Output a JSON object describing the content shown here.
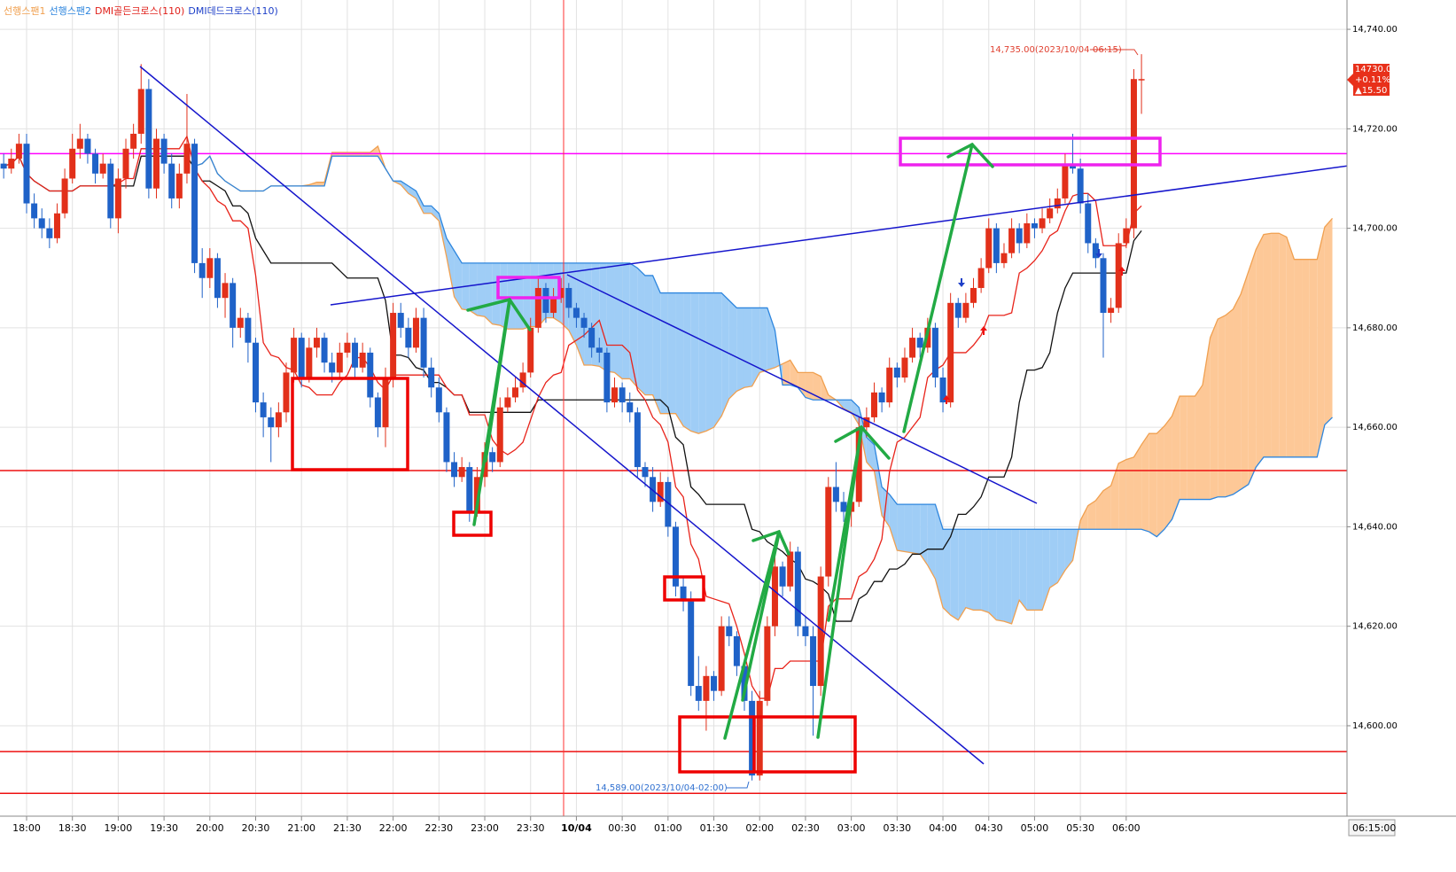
{
  "chart_data": {
    "type": "candlestick",
    "legend": [
      {
        "name": "선행스팬1",
        "color": "#f0a050"
      },
      {
        "name": "선행스팬2",
        "color": "#2e86de"
      },
      {
        "name": "DMI골든크로스(110)",
        "color": "#e0201a"
      },
      {
        "name": "DMI데드크로스(110)",
        "color": "#1d3fc8"
      }
    ],
    "up_color": "#e2301a",
    "down_color": "#1f62c8",
    "tenkan_color": "#e8231a",
    "kijun_color": "#111111",
    "ylim": [
      14582,
      14745
    ],
    "yticks": [
      {
        "value": 14600,
        "label": "14,600.00"
      },
      {
        "value": 14620,
        "label": "14,620.00"
      },
      {
        "value": 14640,
        "label": "14,640.00"
      },
      {
        "value": 14660,
        "label": "14,660.00"
      },
      {
        "value": 14680,
        "label": "14,680.00"
      },
      {
        "value": 14700,
        "label": "14,700.00"
      },
      {
        "value": 14720,
        "label": "14,720.00"
      },
      {
        "value": 14740,
        "label": "14,740.00"
      }
    ],
    "grid": true,
    "hlines": [
      {
        "value": 14715,
        "color": "#ff00ff"
      },
      {
        "value": 14651.3,
        "color": "#ee1111"
      },
      {
        "value": 14594.8,
        "color": "#ee1111"
      },
      {
        "value": 14586.4,
        "color": "#ee1111"
      }
    ],
    "high_label": "14,735.00(2023/10/04-06:15)",
    "low_label": "14,589.00(2023/10/04-02:00)",
    "last_price": "14730.00",
    "change_pct": "+0.11%",
    "change": "▲15.50",
    "end_time": "06:15:00",
    "categories": [
      null,
      null,
      null,
      "18:00",
      null,
      null,
      null,
      null,
      null,
      "18:30",
      null,
      null,
      null,
      null,
      null,
      "19:00",
      null,
      null,
      null,
      null,
      null,
      "19:30",
      null,
      null,
      null,
      null,
      null,
      "20:00",
      null,
      null,
      null,
      null,
      null,
      "20:30",
      null,
      null,
      null,
      null,
      null,
      "21:00",
      null,
      null,
      null,
      null,
      null,
      "21:30",
      null,
      null,
      null,
      null,
      null,
      "22:00",
      null,
      null,
      null,
      null,
      null,
      "22:30",
      null,
      null,
      null,
      null,
      null,
      "23:00",
      null,
      null,
      null,
      null,
      null,
      "23:30",
      null,
      null,
      null,
      null,
      null,
      "10/04",
      null,
      null,
      null,
      null,
      null,
      "00:30",
      null,
      null,
      null,
      null,
      null,
      "01:00",
      null,
      null,
      null,
      null,
      null,
      "01:30",
      null,
      null,
      null,
      null,
      null,
      "02:00",
      null,
      null,
      null,
      null,
      null,
      "02:30",
      null,
      null,
      null,
      null,
      null,
      "03:00",
      null,
      null,
      null,
      null,
      null,
      "03:30",
      null,
      null,
      null,
      null,
      null,
      "04:00",
      null,
      null,
      null,
      null,
      null,
      "04:30",
      null,
      null,
      null,
      null,
      null,
      "05:00",
      null,
      null,
      null,
      null,
      null,
      "05:30",
      null,
      null,
      null,
      null,
      null,
      "06:00",
      null,
      null
    ],
    "candles": [
      [
        14713,
        14715,
        14710,
        14712
      ],
      [
        14712,
        14716,
        14711,
        14714
      ],
      [
        14714,
        14719,
        14713,
        14717
      ],
      [
        14717,
        14719,
        14703,
        14705
      ],
      [
        14705,
        14707,
        14700,
        14702
      ],
      [
        14702,
        14704,
        14698,
        14700
      ],
      [
        14700,
        14702,
        14696,
        14698
      ],
      [
        14698,
        14705,
        14697,
        14703
      ],
      [
        14703,
        14712,
        14702,
        14710
      ],
      [
        14710,
        14719,
        14709,
        14716
      ],
      [
        14716,
        14721,
        14714,
        14718
      ],
      [
        14718,
        14719,
        14713,
        14715
      ],
      [
        14715,
        14716,
        14709,
        14711
      ],
      [
        14711,
        14715,
        14710,
        14713
      ],
      [
        14713,
        14714,
        14700,
        14702
      ],
      [
        14702,
        14712,
        14699,
        14710
      ],
      [
        14710,
        14718,
        14708,
        14716
      ],
      [
        14716,
        14721,
        14714,
        14719
      ],
      [
        14719,
        14733,
        14717,
        14728
      ],
      [
        14728,
        14730,
        14706,
        14708
      ],
      [
        14708,
        14720,
        14706,
        14718
      ],
      [
        14718,
        14719,
        14711,
        14713
      ],
      [
        14713,
        14715,
        14704,
        14706
      ],
      [
        14706,
        14713,
        14704,
        14711
      ],
      [
        14711,
        14727,
        14709,
        14717
      ],
      [
        14717,
        14718,
        14691,
        14693
      ],
      [
        14693,
        14696,
        14686,
        14690
      ],
      [
        14690,
        14696,
        14688,
        14694
      ],
      [
        14694,
        14695,
        14684,
        14686
      ],
      [
        14686,
        14691,
        14682,
        14689
      ],
      [
        14689,
        14690,
        14676,
        14680
      ],
      [
        14680,
        14684,
        14678,
        14682
      ],
      [
        14682,
        14683,
        14673,
        14677
      ],
      [
        14677,
        14678,
        14663,
        14665
      ],
      [
        14665,
        14667,
        14658,
        14662
      ],
      [
        14662,
        14664,
        14653,
        14660
      ],
      [
        14660,
        14665,
        14658,
        14663
      ],
      [
        14663,
        14673,
        14661,
        14671
      ],
      [
        14671,
        14680,
        14669,
        14678
      ],
      [
        14678,
        14679,
        14668,
        14670
      ],
      [
        14670,
        14678,
        14669,
        14676
      ],
      [
        14676,
        14680,
        14674,
        14678
      ],
      [
        14678,
        14679,
        14671,
        14673
      ],
      [
        14673,
        14675,
        14669,
        14671
      ],
      [
        14671,
        14677,
        14670,
        14675
      ],
      [
        14675,
        14679,
        14674,
        14677
      ],
      [
        14677,
        14678,
        14670,
        14672
      ],
      [
        14672,
        14677,
        14671,
        14675
      ],
      [
        14675,
        14676,
        14664,
        14666
      ],
      [
        14666,
        14667,
        14658,
        14660
      ],
      [
        14660,
        14672,
        14656,
        14670
      ],
      [
        14670,
        14685,
        14668,
        14683
      ],
      [
        14683,
        14685,
        14678,
        14680
      ],
      [
        14680,
        14682,
        14674,
        14676
      ],
      [
        14676,
        14684,
        14675,
        14682
      ],
      [
        14682,
        14684,
        14670,
        14672
      ],
      [
        14672,
        14674,
        14666,
        14668
      ],
      [
        14668,
        14670,
        14661,
        14663
      ],
      [
        14663,
        14664,
        14651,
        14653
      ],
      [
        14653,
        14655,
        14648,
        14650
      ],
      [
        14650,
        14654,
        14649,
        14652
      ],
      [
        14652,
        14653,
        14641,
        14643
      ],
      [
        14643,
        14652,
        14642,
        14650
      ],
      [
        14650,
        14657,
        14648,
        14655
      ],
      [
        14655,
        14656,
        14651,
        14653
      ],
      [
        14653,
        14666,
        14652,
        14664
      ],
      [
        14664,
        14668,
        14663,
        14666
      ],
      [
        14666,
        14670,
        14665,
        14668
      ],
      [
        14668,
        14673,
        14667,
        14671
      ],
      [
        14671,
        14682,
        14670,
        14680
      ],
      [
        14680,
        14690,
        14679,
        14688
      ],
      [
        14688,
        14689,
        14681,
        14683
      ],
      [
        14683,
        14688,
        14682,
        14686
      ],
      [
        14686,
        14690,
        14685,
        14688
      ],
      [
        14688,
        14689,
        14682,
        14684
      ],
      [
        14684,
        14685,
        14680,
        14682
      ],
      [
        14682,
        14683,
        14678,
        14680
      ],
      [
        14680,
        14681,
        14674,
        14676
      ],
      [
        14676,
        14678,
        14673,
        14675
      ],
      [
        14675,
        14676,
        14663,
        14665
      ],
      [
        14665,
        14670,
        14664,
        14668
      ],
      [
        14668,
        14669,
        14663,
        14665
      ],
      [
        14665,
        14667,
        14661,
        14663
      ],
      [
        14663,
        14664,
        14650,
        14652
      ],
      [
        14652,
        14653,
        14648,
        14650
      ],
      [
        14650,
        14652,
        14643,
        14645
      ],
      [
        14645,
        14651,
        14644,
        14649
      ],
      [
        14649,
        14650,
        14638,
        14640
      ],
      [
        14640,
        14641,
        14626,
        14628
      ],
      [
        14628,
        14630,
        14623,
        14625
      ],
      [
        14625,
        14627,
        14606,
        14608
      ],
      [
        14608,
        14614,
        14603,
        14605
      ],
      [
        14605,
        14612,
        14599,
        14610
      ],
      [
        14610,
        14611,
        14605,
        14607
      ],
      [
        14607,
        14622,
        14606,
        14620
      ],
      [
        14620,
        14622,
        14616,
        14618
      ],
      [
        14618,
        14619,
        14610,
        14612
      ],
      [
        14612,
        14613,
        14603,
        14605
      ],
      [
        14605,
        14607,
        14589,
        14590
      ],
      [
        14590,
        14607,
        14589,
        14605
      ],
      [
        14605,
        14622,
        14604,
        14620
      ],
      [
        14620,
        14634,
        14618,
        14632
      ],
      [
        14632,
        14633,
        14626,
        14628
      ],
      [
        14628,
        14637,
        14627,
        14635
      ],
      [
        14635,
        14636,
        14618,
        14620
      ],
      [
        14620,
        14622,
        14616,
        14618
      ],
      [
        14618,
        14620,
        14598,
        14608
      ],
      [
        14608,
        14632,
        14606,
        14630
      ],
      [
        14630,
        14650,
        14628,
        14648
      ],
      [
        14648,
        14653,
        14643,
        14645
      ],
      [
        14645,
        14647,
        14641,
        14643
      ],
      [
        14643,
        14648,
        14640,
        14645
      ],
      [
        14645,
        14662,
        14644,
        14660
      ],
      [
        14660,
        14664,
        14658,
        14662
      ],
      [
        14662,
        14669,
        14661,
        14667
      ],
      [
        14667,
        14668,
        14663,
        14665
      ],
      [
        14665,
        14674,
        14664,
        14672
      ],
      [
        14672,
        14673,
        14668,
        14670
      ],
      [
        14670,
        14676,
        14669,
        14674
      ],
      [
        14674,
        14680,
        14673,
        14678
      ],
      [
        14678,
        14679,
        14674,
        14676
      ],
      [
        14676,
        14682,
        14675,
        14680
      ],
      [
        14680,
        14681,
        14668,
        14670
      ],
      [
        14670,
        14672,
        14663,
        14665
      ],
      [
        14665,
        14687,
        14664,
        14685
      ],
      [
        14685,
        14686,
        14680,
        14682
      ],
      [
        14682,
        14687,
        14681,
        14685
      ],
      [
        14685,
        14690,
        14684,
        14688
      ],
      [
        14688,
        14694,
        14687,
        14692
      ],
      [
        14692,
        14702,
        14691,
        14700
      ],
      [
        14700,
        14701,
        14691,
        14693
      ],
      [
        14693,
        14697,
        14692,
        14695
      ],
      [
        14695,
        14702,
        14694,
        14700
      ],
      [
        14700,
        14701,
        14695,
        14697
      ],
      [
        14697,
        14703,
        14696,
        14701
      ],
      [
        14701,
        14702,
        14698,
        14700
      ],
      [
        14700,
        14704,
        14699,
        14702
      ],
      [
        14702,
        14706,
        14701,
        14704
      ],
      [
        14704,
        14708,
        14703,
        14706
      ],
      [
        14706,
        14715,
        14705,
        14713
      ],
      [
        14713,
        14719,
        14711,
        14712
      ],
      [
        14712,
        14714,
        14703,
        14705
      ],
      [
        14705,
        14707,
        14695,
        14697
      ],
      [
        14697,
        14698,
        14692,
        14694
      ],
      [
        14694,
        14695,
        14674,
        14683
      ],
      [
        14683,
        14686,
        14681,
        14684
      ],
      [
        14684,
        14699,
        14683,
        14697
      ],
      [
        14697,
        14702,
        14696,
        14700
      ],
      [
        14700,
        14732,
        14698,
        14730
      ],
      [
        14730,
        14735,
        14723,
        14730
      ]
    ]
  }
}
